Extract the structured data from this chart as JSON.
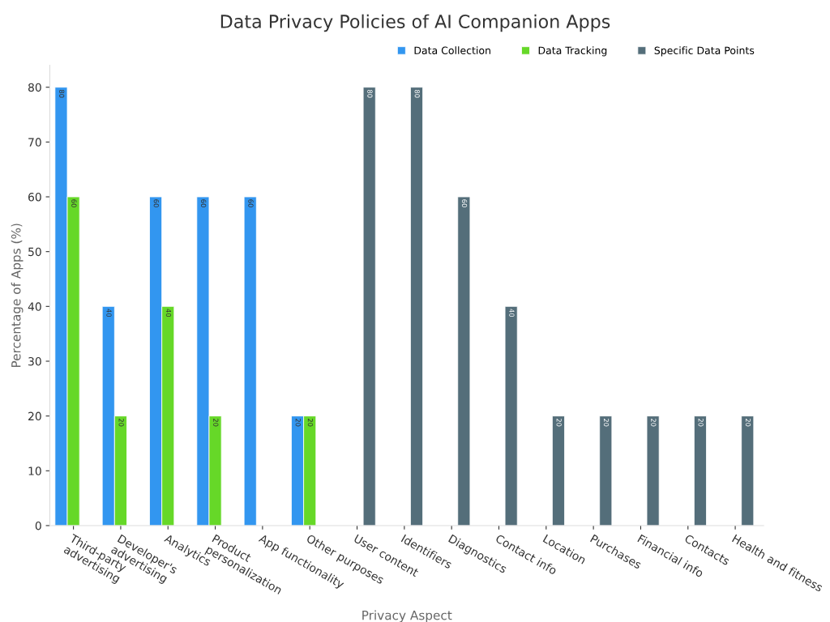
{
  "chart_data": {
    "type": "bar",
    "title": "Data Privacy Policies of AI Companion Apps",
    "xlabel": "Privacy Aspect",
    "ylabel": "Percentage of Apps (%)",
    "categories": [
      "Third-party\nadvertising",
      "Developer's\nadvertising",
      "Analytics",
      "Product\npersonalization",
      "App functionality",
      "Other purposes",
      "User content",
      "Identifiers",
      "Diagnostics",
      "Contact info",
      "Location",
      "Purchases",
      "Financial info",
      "Contacts",
      "Health and fitness"
    ],
    "series": [
      {
        "name": "Data Collection",
        "color": "#3296f0",
        "values": [
          80,
          40,
          60,
          60,
          60,
          20,
          null,
          null,
          null,
          null,
          null,
          null,
          null,
          null,
          null
        ]
      },
      {
        "name": "Data Tracking",
        "color": "#66d828",
        "values": [
          60,
          20,
          40,
          20,
          null,
          20,
          null,
          null,
          null,
          null,
          null,
          null,
          null,
          null,
          null
        ]
      },
      {
        "name": "Specific Data Points",
        "color": "#546e7a",
        "values": [
          null,
          null,
          null,
          null,
          null,
          null,
          80,
          80,
          60,
          40,
          20,
          20,
          20,
          20,
          20
        ]
      }
    ],
    "ylim": [
      0,
      84
    ],
    "yticks": [
      0,
      10,
      20,
      30,
      40,
      50,
      60,
      70,
      80
    ],
    "grid": false,
    "legend": "top right",
    "data_labels": true
  }
}
